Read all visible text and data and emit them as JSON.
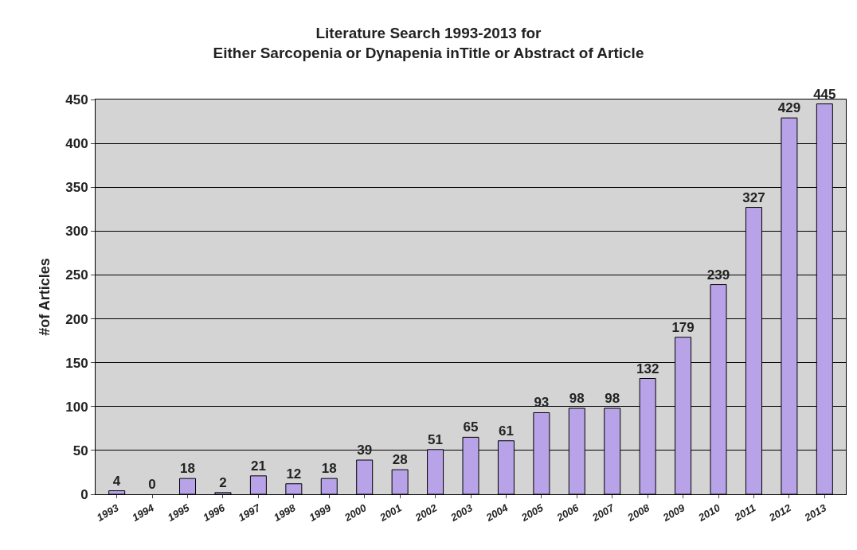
{
  "chart_data": {
    "type": "bar",
    "title": "Literature Search 1993-2013 for\nEither Sarcopenia or Dynapenia inTitle or Abstract of Article",
    "ylabel": "#of Articles",
    "categories": [
      "1993",
      "1994",
      "1995",
      "1996",
      "1997",
      "1998",
      "1999",
      "2000",
      "2001",
      "2002",
      "2003",
      "2004",
      "2005",
      "2006",
      "2007",
      "2008",
      "2009",
      "2010",
      "2011",
      "2012",
      "2013"
    ],
    "values": [
      4,
      0,
      18,
      2,
      21,
      12,
      18,
      39,
      28,
      51,
      65,
      61,
      93,
      98,
      98,
      132,
      179,
      239,
      327,
      429,
      445
    ],
    "color": "#b9a3e8",
    "ylim": [
      0,
      450
    ],
    "yticks": [
      0,
      50,
      100,
      150,
      200,
      250,
      300,
      350,
      400,
      450
    ],
    "grid": "y",
    "data_labels": true,
    "legend": false
  }
}
